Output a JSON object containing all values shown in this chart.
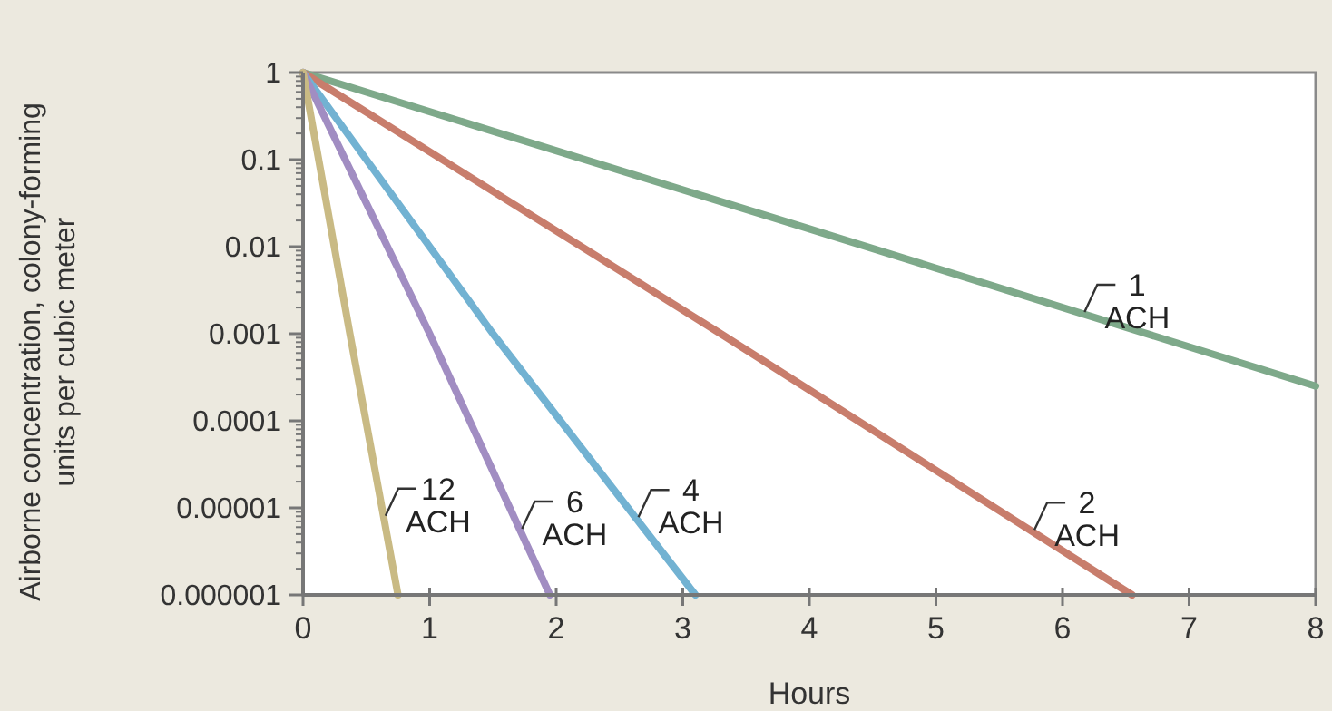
{
  "chart_data": {
    "type": "line",
    "xlabel": "Hours",
    "ylabel": "Airborne concentration, colony-forming units per cubic meter",
    "log": "y",
    "xlim": [
      0,
      8
    ],
    "xticks": [
      0,
      1,
      2,
      3,
      4,
      5,
      6,
      7,
      8
    ],
    "ylim": [
      1e-06,
      1
    ],
    "yticks": [
      {
        "value": 1e-06,
        "label": "0.000001"
      },
      {
        "value": 1e-05,
        "label": "0.00001"
      },
      0.0001,
      0.001,
      0.01,
      0.1,
      1
    ],
    "grid": false,
    "marker": "none",
    "line_style": "solid",
    "series": [
      {
        "name": "1 ACH",
        "color": "#7ea98a",
        "x": [
          0,
          4,
          8
        ],
        "values": [
          1,
          0.016,
          0.00025
        ]
      },
      {
        "name": "2 ACH",
        "color": "#c87d6c",
        "x": [
          0,
          3.3,
          6.55
        ],
        "values": [
          1,
          0.001,
          1e-06
        ]
      },
      {
        "name": "4 ACH",
        "color": "#72b2d2",
        "x": [
          0,
          1.5,
          3.1
        ],
        "values": [
          1,
          0.001,
          1e-06
        ]
      },
      {
        "name": "6 ACH",
        "color": "#a18dc2",
        "x": [
          0,
          1,
          1.95
        ],
        "values": [
          1,
          0.001,
          1e-06
        ]
      },
      {
        "name": "12 ACH",
        "color": "#c9ba84",
        "x": [
          0,
          0.37,
          0.75
        ],
        "values": [
          1,
          0.001,
          1e-06
        ]
      }
    ]
  }
}
